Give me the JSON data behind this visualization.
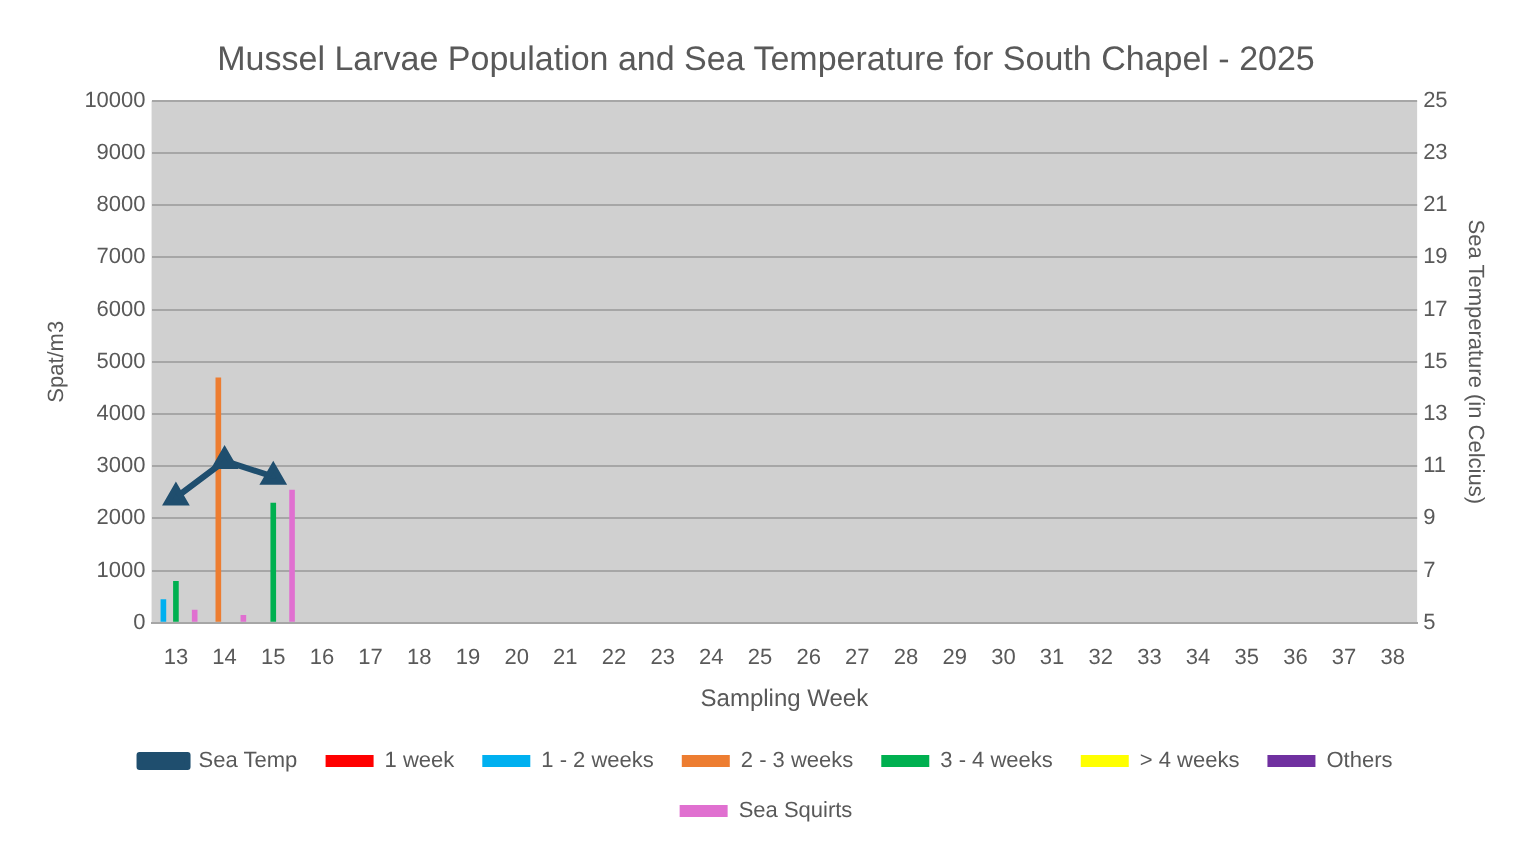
{
  "chart_data": {
    "type": "bar",
    "title": "Mussel Larvae Population and Sea Temperature for South Chapel - 2025",
    "xlabel": "Sampling Week",
    "ylabel": "Spat/m3",
    "y2label": "Sea Temperature (in Celcius)",
    "categories": [
      "13",
      "14",
      "15",
      "16",
      "17",
      "18",
      "19",
      "20",
      "21",
      "22",
      "23",
      "24",
      "25",
      "26",
      "27",
      "28",
      "29",
      "30",
      "31",
      "32",
      "33",
      "34",
      "35",
      "36",
      "37",
      "38"
    ],
    "series": [
      {
        "name": "1 week",
        "color": "#ff0000",
        "values": [
          null,
          null,
          null,
          null,
          null,
          null,
          null,
          null,
          null,
          null,
          null,
          null,
          null,
          null,
          null,
          null,
          null,
          null,
          null,
          null,
          null,
          null,
          null,
          null,
          null,
          null
        ]
      },
      {
        "name": "1 - 2 weeks",
        "color": "#00b0f0",
        "values": [
          450,
          null,
          null,
          null,
          null,
          null,
          null,
          null,
          null,
          null,
          null,
          null,
          null,
          null,
          null,
          null,
          null,
          null,
          null,
          null,
          null,
          null,
          null,
          null,
          null,
          null
        ]
      },
      {
        "name": "2 - 3 weeks",
        "color": "#ed7d31",
        "values": [
          null,
          4700,
          null,
          null,
          null,
          null,
          null,
          null,
          null,
          null,
          null,
          null,
          null,
          null,
          null,
          null,
          null,
          null,
          null,
          null,
          null,
          null,
          null,
          null,
          null,
          null
        ]
      },
      {
        "name": "3 - 4 weeks",
        "color": "#00b050",
        "values": [
          800,
          null,
          2300,
          null,
          null,
          null,
          null,
          null,
          null,
          null,
          null,
          null,
          null,
          null,
          null,
          null,
          null,
          null,
          null,
          null,
          null,
          null,
          null,
          null,
          null,
          null
        ]
      },
      {
        "name": "> 4 weeks",
        "color": "#ffff00",
        "values": [
          null,
          null,
          null,
          null,
          null,
          null,
          null,
          null,
          null,
          null,
          null,
          null,
          null,
          null,
          null,
          null,
          null,
          null,
          null,
          null,
          null,
          null,
          null,
          null,
          null,
          null
        ]
      },
      {
        "name": "Others",
        "color": "#7030a0",
        "values": [
          null,
          null,
          null,
          null,
          null,
          null,
          null,
          null,
          null,
          null,
          null,
          null,
          null,
          null,
          null,
          null,
          null,
          null,
          null,
          null,
          null,
          null,
          null,
          null,
          null,
          null
        ]
      },
      {
        "name": "Sea Squirts",
        "color": "#e070d0",
        "values": [
          250,
          150,
          2550,
          null,
          null,
          null,
          null,
          null,
          null,
          null,
          null,
          null,
          null,
          null,
          null,
          null,
          null,
          null,
          null,
          null,
          null,
          null,
          null,
          null,
          null,
          null
        ]
      },
      {
        "name": "Sea Temp",
        "type": "line",
        "axis": "y2",
        "color": "#1f4e6e",
        "marker": "triangle",
        "values": [
          9.8,
          11.2,
          10.6,
          null,
          null,
          null,
          null,
          null,
          null,
          null,
          null,
          null,
          null,
          null,
          null,
          null,
          null,
          null,
          null,
          null,
          null,
          null,
          null,
          null,
          null,
          null
        ]
      }
    ],
    "ylim": [
      0,
      10000
    ],
    "yticks": [
      0,
      1000,
      2000,
      3000,
      4000,
      5000,
      6000,
      7000,
      8000,
      9000,
      10000
    ],
    "y2lim": [
      5,
      25
    ],
    "y2ticks": [
      5,
      7,
      9,
      11,
      13,
      15,
      17,
      19,
      21,
      23,
      25
    ],
    "grid": "y",
    "legend": "bottom"
  }
}
